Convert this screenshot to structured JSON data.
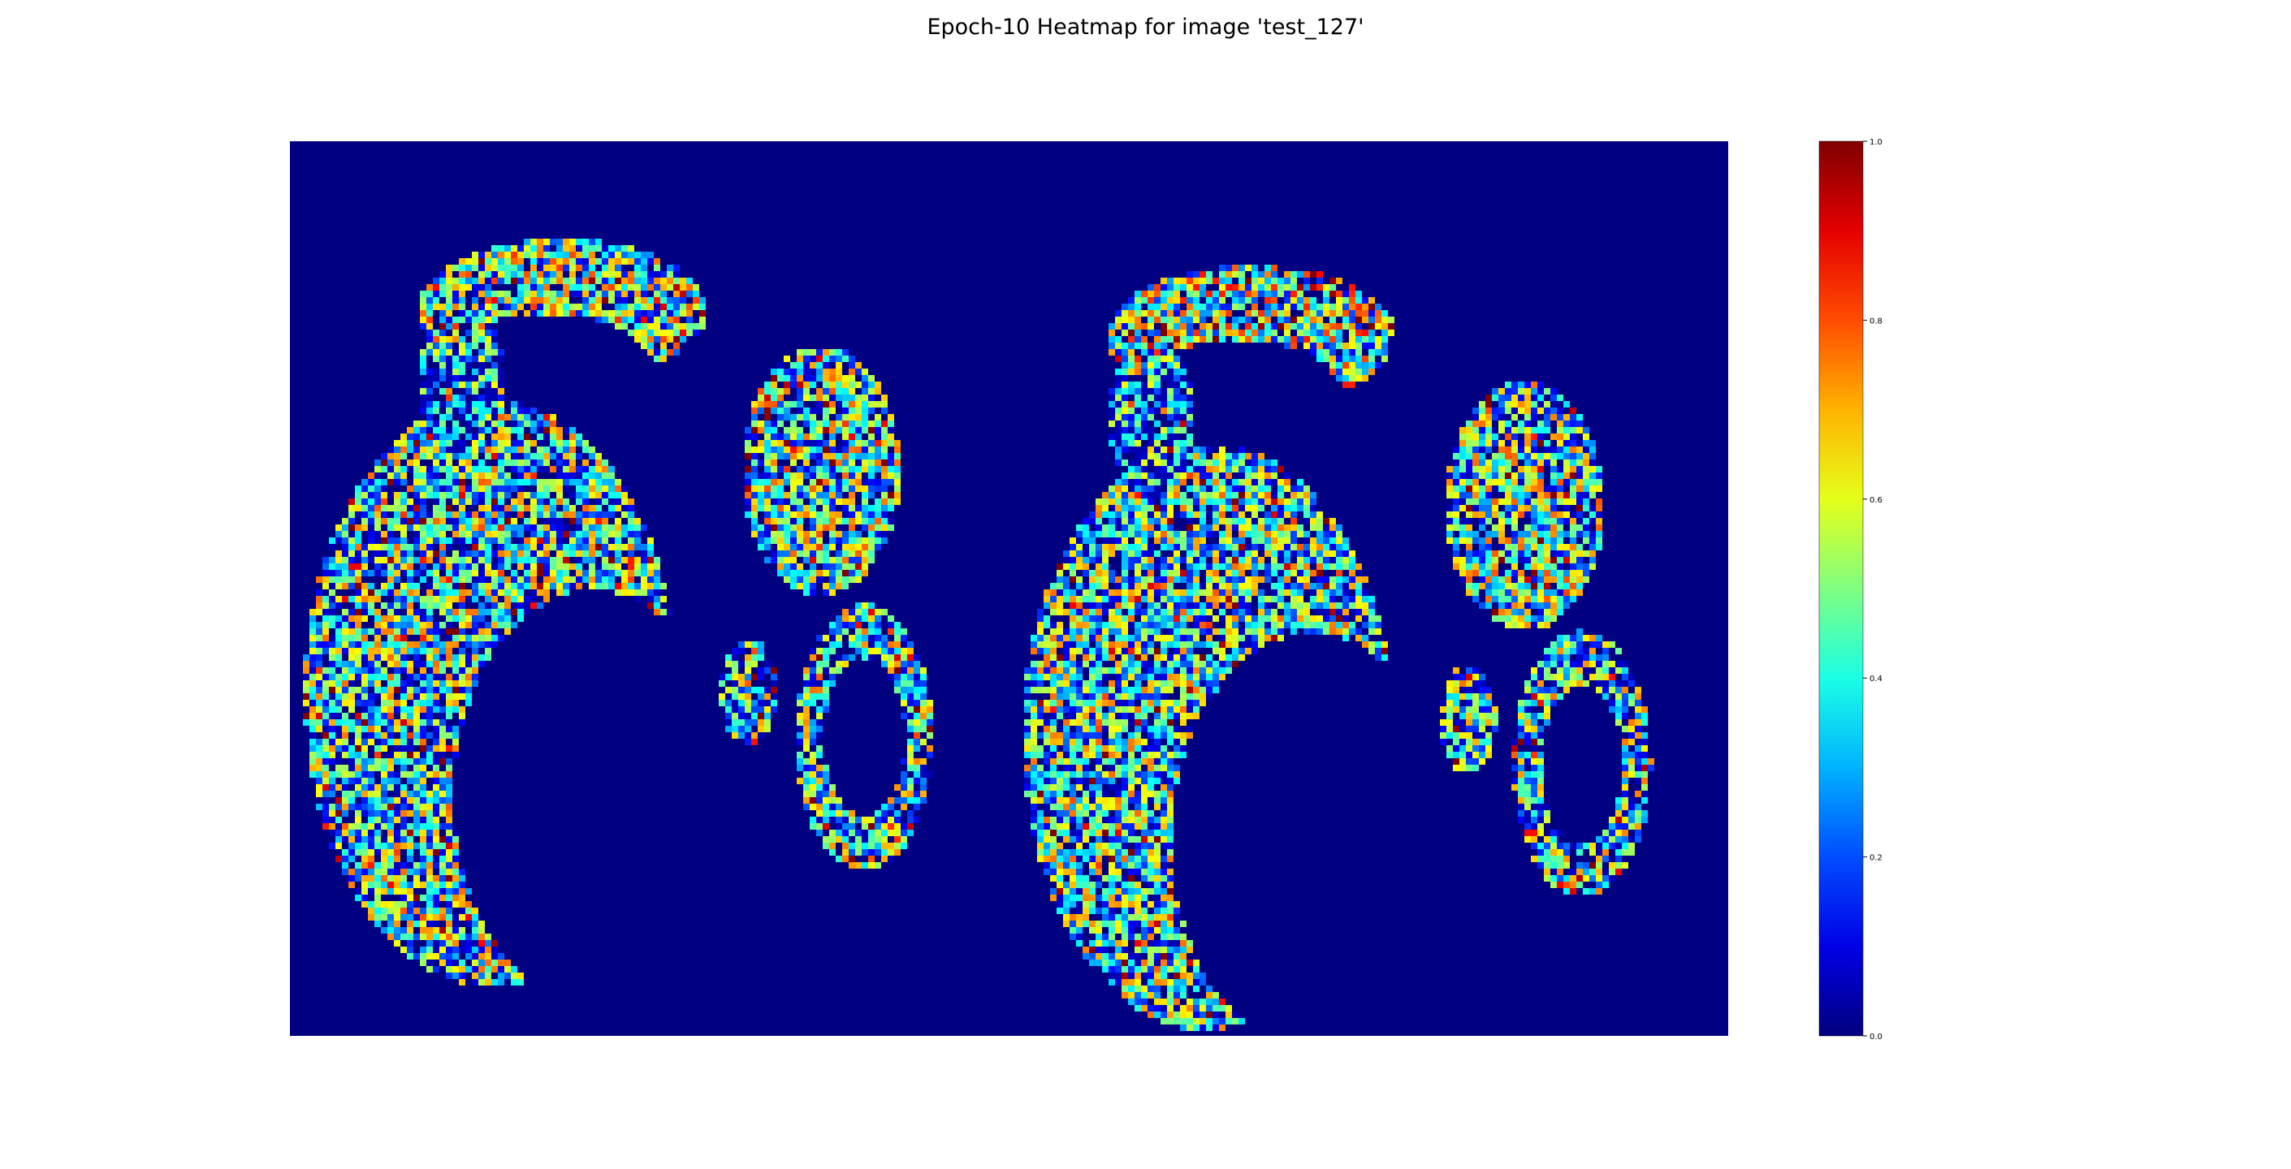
{
  "title": "Epoch-10 Heatmap for image 'test_127'",
  "chart_data": {
    "type": "heatmap",
    "title": "Epoch-10 Heatmap for image 'test_127'",
    "colormap": "jet",
    "background_value": 0.0,
    "axes_visible": false,
    "colorbar": {
      "range": [
        0.0,
        1.0
      ],
      "ticks": [
        0.0,
        0.2,
        0.4,
        0.6,
        0.8,
        1.0
      ],
      "tick_labels": [
        "0.0",
        "0.2",
        "0.4",
        "0.6",
        "0.8",
        "1.0"
      ],
      "placement": "right"
    },
    "regions": [
      {
        "name": "upper-left-arc-left-pair",
        "cx": 0.19,
        "cy": 0.19,
        "rx": 0.1,
        "ry": 0.08,
        "mean": 0.45,
        "kind": "arcTop"
      },
      {
        "name": "upper-left-tail-left-pair",
        "cx": 0.12,
        "cy": 0.27,
        "rx": 0.03,
        "ry": 0.09,
        "mean": 0.25,
        "kind": "tail"
      },
      {
        "name": "upper-right-blob-left-pair",
        "cx": 0.37,
        "cy": 0.37,
        "rx": 0.055,
        "ry": 0.14,
        "mean": 0.42,
        "kind": "blob"
      },
      {
        "name": "lower-left-crescent-left-pair",
        "cx": 0.14,
        "cy": 0.62,
        "rx": 0.13,
        "ry": 0.33,
        "mean": 0.4,
        "kind": "crescent"
      },
      {
        "name": "lower-mid-oval-left-pair",
        "cx": 0.32,
        "cy": 0.62,
        "rx": 0.02,
        "ry": 0.06,
        "mean": 0.35,
        "kind": "blob"
      },
      {
        "name": "lower-right-ring-left-pair",
        "cx": 0.4,
        "cy": 0.67,
        "rx": 0.048,
        "ry": 0.15,
        "mean": 0.38,
        "kind": "ring"
      },
      {
        "name": "upper-left-arc-right-pair",
        "cx": 0.67,
        "cy": 0.22,
        "rx": 0.1,
        "ry": 0.08,
        "mean": 0.5,
        "kind": "arcTop"
      },
      {
        "name": "upper-left-tail-right-pair",
        "cx": 0.6,
        "cy": 0.31,
        "rx": 0.03,
        "ry": 0.09,
        "mean": 0.25,
        "kind": "tail"
      },
      {
        "name": "upper-right-blob-right-pair",
        "cx": 0.86,
        "cy": 0.41,
        "rx": 0.055,
        "ry": 0.14,
        "mean": 0.42,
        "kind": "blob"
      },
      {
        "name": "lower-left-crescent-right-pair",
        "cx": 0.64,
        "cy": 0.67,
        "rx": 0.13,
        "ry": 0.33,
        "mean": 0.4,
        "kind": "crescent"
      },
      {
        "name": "lower-mid-oval-right-pair",
        "cx": 0.82,
        "cy": 0.65,
        "rx": 0.02,
        "ry": 0.06,
        "mean": 0.35,
        "kind": "blob"
      },
      {
        "name": "lower-right-ring-right-pair",
        "cx": 0.9,
        "cy": 0.7,
        "rx": 0.048,
        "ry": 0.15,
        "mean": 0.38,
        "kind": "ring"
      }
    ]
  }
}
